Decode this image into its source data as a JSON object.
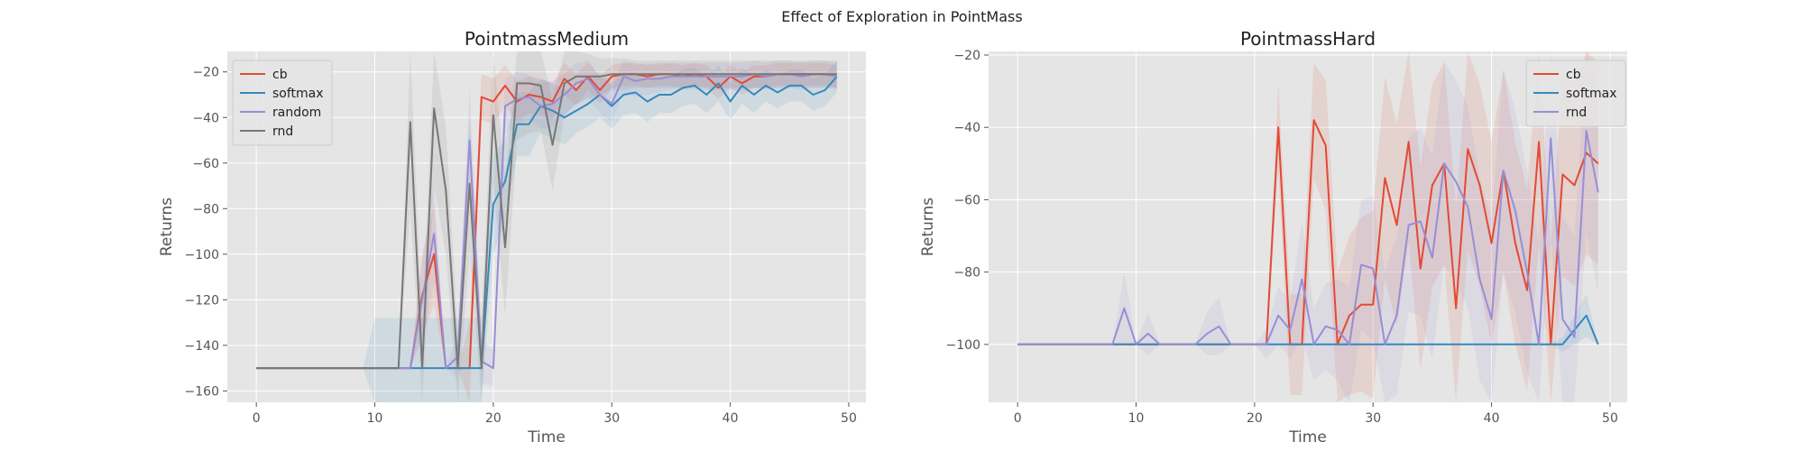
{
  "figure": {
    "suptitle": "Effect of Exploration in PointMass"
  },
  "colors": {
    "cb": "#E24A33",
    "softmax": "#348ABD",
    "random": "#988ED5",
    "rnd": "#777777",
    "background": "#E5E5E5",
    "grid": "#FFFFFF"
  },
  "chart_data": [
    {
      "type": "line",
      "title": "PointmassMedium",
      "xlabel": "Time",
      "ylabel": "Returns",
      "xlim": [
        -2.45,
        51.45
      ],
      "ylim": [
        -165,
        -11
      ],
      "xticks": [
        0,
        10,
        20,
        30,
        40,
        50
      ],
      "yticks": [
        -160,
        -140,
        -120,
        -100,
        -80,
        -60,
        -40,
        -20
      ],
      "grid": true,
      "legend": "top-left",
      "x": [
        0,
        1,
        2,
        3,
        4,
        5,
        6,
        7,
        8,
        9,
        10,
        11,
        12,
        13,
        14,
        15,
        16,
        17,
        18,
        19,
        20,
        21,
        22,
        23,
        24,
        25,
        26,
        27,
        28,
        29,
        30,
        31,
        32,
        33,
        34,
        35,
        36,
        37,
        38,
        39,
        40,
        41,
        42,
        43,
        44,
        45,
        46,
        47,
        48,
        49
      ],
      "series": [
        {
          "name": "cb",
          "color": "#E24A33",
          "values": [
            -150,
            -150,
            -150,
            -150,
            -150,
            -150,
            -150,
            -150,
            -150,
            -150,
            -150,
            -150,
            -150,
            -150,
            -118,
            -100,
            -150,
            -150,
            -150,
            -31,
            -33,
            -26,
            -33,
            -30,
            -31,
            -33,
            -23,
            -28,
            -22,
            -28,
            -22,
            -21,
            -21,
            -22,
            -21,
            -21,
            -22,
            -21,
            -22,
            -27,
            -22,
            -25,
            -22,
            -22,
            -21,
            -21,
            -21,
            -21,
            -21,
            -22
          ],
          "band": [
            0,
            0,
            0,
            0,
            0,
            0,
            0,
            0,
            0,
            0,
            0,
            0,
            0,
            0,
            18,
            22,
            0,
            0,
            20,
            10,
            10,
            9,
            9,
            8,
            8,
            8,
            7,
            7,
            6,
            6,
            5,
            5,
            5,
            5,
            5,
            5,
            5,
            5,
            5,
            5,
            5,
            5,
            5,
            5,
            5,
            5,
            5,
            5,
            5,
            5
          ]
        },
        {
          "name": "softmax",
          "color": "#348ABD",
          "values": [
            -150,
            -150,
            -150,
            -150,
            -150,
            -150,
            -150,
            -150,
            -150,
            -150,
            -150,
            -150,
            -150,
            -150,
            -150,
            -150,
            -150,
            -150,
            -150,
            -150,
            -78,
            -68,
            -43,
            -43,
            -35,
            -37,
            -40,
            -37,
            -34,
            -30,
            -35,
            -30,
            -29,
            -33,
            -30,
            -30,
            -27,
            -26,
            -30,
            -25,
            -33,
            -26,
            -30,
            -26,
            -29,
            -26,
            -26,
            -30,
            -28,
            -22
          ],
          "band": [
            0,
            0,
            0,
            0,
            0,
            0,
            0,
            0,
            0,
            0,
            22,
            22,
            22,
            22,
            22,
            22,
            22,
            22,
            22,
            22,
            22,
            18,
            14,
            14,
            12,
            12,
            12,
            10,
            10,
            10,
            10,
            9,
            9,
            9,
            8,
            8,
            8,
            8,
            8,
            8,
            8,
            8,
            8,
            7,
            7,
            7,
            7,
            7,
            7,
            7
          ]
        },
        {
          "name": "random",
          "color": "#988ED5",
          "values": [
            -150,
            -150,
            -150,
            -150,
            -150,
            -150,
            -150,
            -150,
            -150,
            -150,
            -150,
            -150,
            -150,
            -150,
            -120,
            -91,
            -150,
            -145,
            -50,
            -147,
            -150,
            -35,
            -32,
            -31,
            -35,
            -34,
            -30,
            -25,
            -23,
            -30,
            -34,
            -22,
            -24,
            -23,
            -23,
            -22,
            -22,
            -22,
            -22,
            -22,
            -22,
            -22,
            -21,
            -22,
            -21,
            -21,
            -22,
            -21,
            -21,
            -22
          ],
          "band": [
            0,
            0,
            0,
            0,
            0,
            0,
            0,
            0,
            0,
            0,
            0,
            0,
            0,
            0,
            18,
            22,
            0,
            10,
            24,
            10,
            8,
            12,
            12,
            10,
            10,
            10,
            9,
            9,
            8,
            8,
            8,
            7,
            7,
            7,
            6,
            6,
            6,
            6,
            6,
            6,
            6,
            6,
            6,
            6,
            6,
            6,
            6,
            6,
            6,
            6
          ]
        },
        {
          "name": "rnd",
          "color": "#777777",
          "values": [
            -150,
            -150,
            -150,
            -150,
            -150,
            -150,
            -150,
            -150,
            -150,
            -150,
            -150,
            -150,
            -150,
            -42,
            -150,
            -36,
            -72,
            -150,
            -69,
            -150,
            -39,
            -97,
            -25,
            -25,
            -26,
            -52,
            -25,
            -22,
            -22,
            -22,
            -21,
            -21,
            -21,
            -21,
            -21,
            -21,
            -21,
            -21,
            -21,
            -21,
            -21,
            -21,
            -21,
            -21,
            -21,
            -21,
            -21,
            -21,
            -21,
            -21
          ],
          "band": [
            0,
            0,
            0,
            0,
            0,
            0,
            0,
            0,
            0,
            0,
            0,
            0,
            0,
            38,
            20,
            34,
            28,
            15,
            30,
            18,
            30,
            30,
            25,
            22,
            20,
            20,
            14,
            12,
            10,
            8,
            7,
            7,
            6,
            6,
            6,
            6,
            6,
            6,
            6,
            6,
            6,
            6,
            6,
            6,
            6,
            6,
            6,
            6,
            6,
            6
          ]
        }
      ]
    },
    {
      "type": "line",
      "title": "PointmassHard",
      "xlabel": "Time",
      "ylabel": "Returns",
      "xlim": [
        -2.45,
        51.45
      ],
      "ylim": [
        -116,
        -19
      ],
      "xticks": [
        0,
        10,
        20,
        30,
        40,
        50
      ],
      "yticks": [
        -100,
        -80,
        -60,
        -40,
        -20
      ],
      "grid": true,
      "legend": "top-right",
      "x": [
        0,
        1,
        2,
        3,
        4,
        5,
        6,
        7,
        8,
        9,
        10,
        11,
        12,
        13,
        14,
        15,
        16,
        17,
        18,
        19,
        20,
        21,
        22,
        23,
        24,
        25,
        26,
        27,
        28,
        29,
        30,
        31,
        32,
        33,
        34,
        35,
        36,
        37,
        38,
        39,
        40,
        41,
        42,
        43,
        44,
        45,
        46,
        47,
        48,
        49
      ],
      "series": [
        {
          "name": "cb",
          "color": "#E24A33",
          "values": [
            -100,
            -100,
            -100,
            -100,
            -100,
            -100,
            -100,
            -100,
            -100,
            -100,
            -100,
            -100,
            -100,
            -100,
            -100,
            -100,
            -100,
            -100,
            -100,
            -100,
            -100,
            -100,
            -40,
            -100,
            -100,
            -38,
            -45,
            -100,
            -92,
            -89,
            -89,
            -54,
            -67,
            -44,
            -79,
            -56,
            -50,
            -90,
            -46,
            -56,
            -72,
            -52,
            -72,
            -85,
            -44,
            -100,
            -53,
            -56,
            -47,
            -50
          ],
          "band": [
            0,
            0,
            0,
            0,
            0,
            0,
            0,
            0,
            0,
            0,
            0,
            0,
            0,
            0,
            0,
            0,
            0,
            0,
            0,
            0,
            0,
            0,
            12,
            14,
            14,
            16,
            18,
            20,
            22,
            24,
            26,
            28,
            28,
            28,
            28,
            28,
            28,
            28,
            28,
            28,
            28,
            28,
            28,
            28,
            28,
            28,
            28,
            28,
            28,
            28
          ]
        },
        {
          "name": "softmax",
          "color": "#348ABD",
          "values": [
            -100,
            -100,
            -100,
            -100,
            -100,
            -100,
            -100,
            -100,
            -100,
            -100,
            -100,
            -100,
            -100,
            -100,
            -100,
            -100,
            -100,
            -100,
            -100,
            -100,
            -100,
            -100,
            -100,
            -100,
            -100,
            -100,
            -100,
            -100,
            -100,
            -100,
            -100,
            -100,
            -100,
            -100,
            -100,
            -100,
            -100,
            -100,
            -100,
            -100,
            -100,
            -100,
            -100,
            -100,
            -100,
            -100,
            -100,
            -96,
            -92,
            -100
          ],
          "band": [
            0,
            0,
            0,
            0,
            0,
            0,
            0,
            0,
            0,
            0,
            0,
            0,
            0,
            0,
            0,
            0,
            0,
            0,
            0,
            0,
            0,
            0,
            0,
            0,
            0,
            0,
            0,
            0,
            0,
            0,
            0,
            0,
            0,
            0,
            0,
            0,
            0,
            0,
            0,
            0,
            0,
            0,
            0,
            0,
            0,
            0,
            2,
            4,
            6,
            0
          ]
        },
        {
          "name": "rnd",
          "color": "#988ED5",
          "values": [
            -100,
            -100,
            -100,
            -100,
            -100,
            -100,
            -100,
            -100,
            -100,
            -90,
            -100,
            -97,
            -100,
            -100,
            -100,
            -100,
            -97,
            -95,
            -100,
            -100,
            -100,
            -100,
            -92,
            -96,
            -82,
            -100,
            -95,
            -96,
            -100,
            -78,
            -79,
            -100,
            -92,
            -67,
            -66,
            -76,
            -50,
            -55,
            -62,
            -82,
            -93,
            -52,
            -63,
            -80,
            -100,
            -43,
            -93,
            -98,
            -41,
            -58
          ],
          "band": [
            0,
            0,
            0,
            0,
            0,
            0,
            0,
            0,
            0,
            10,
            0,
            6,
            0,
            0,
            0,
            0,
            6,
            8,
            0,
            0,
            0,
            4,
            8,
            8,
            16,
            10,
            12,
            14,
            16,
            18,
            20,
            20,
            22,
            24,
            26,
            28,
            28,
            28,
            28,
            28,
            28,
            28,
            28,
            28,
            28,
            28,
            28,
            28,
            28,
            28
          ]
        }
      ]
    }
  ]
}
